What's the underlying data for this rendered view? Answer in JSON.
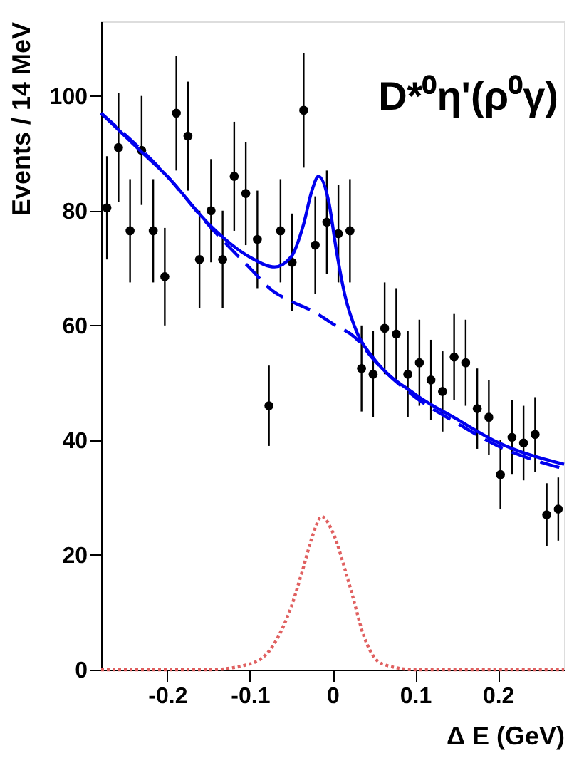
{
  "chart_data": {
    "type": "scatter",
    "xlabel": "Δ E (GeV)",
    "ylabel": "Events / 14 MeV",
    "annotations": [
      "D*⁰η'(ρ⁰γ)"
    ],
    "xlim": [
      -0.28,
      0.28
    ],
    "xticks": [
      -0.2,
      -0.1,
      0,
      0.1,
      0.2
    ],
    "ylim": [
      0,
      113
    ],
    "yticks": [
      0,
      20,
      40,
      60,
      80,
      100
    ],
    "grid": false,
    "marker": "circle",
    "series": [
      {
        "color": "#000000",
        "x": [
          -0.273,
          -0.259,
          -0.245,
          -0.231,
          -0.217,
          -0.203,
          -0.189,
          -0.175,
          -0.161,
          -0.147,
          -0.133,
          -0.119,
          -0.105,
          -0.091,
          -0.077,
          -0.063,
          -0.049,
          -0.035,
          -0.021,
          -0.007,
          0.007,
          0.021,
          0.035,
          0.049,
          0.063,
          0.077,
          0.091,
          0.105,
          0.119,
          0.133,
          0.147,
          0.161,
          0.175,
          0.189,
          0.203,
          0.217,
          0.231,
          0.245,
          0.259,
          0.273
        ],
        "values": [
          80.5,
          91,
          76.5,
          90.5,
          76.5,
          68.5,
          97,
          93,
          71.5,
          80,
          71.5,
          86,
          83,
          75,
          46,
          76.5,
          71,
          97.5,
          74,
          78,
          76,
          76.5,
          52.5,
          51.5,
          59.5,
          58.5,
          51.5,
          53.5,
          50.5,
          48.5,
          54.5,
          53.5,
          45.5,
          44,
          34,
          40.5,
          39.5,
          41,
          27,
          28
        ],
        "errors": [
          9,
          9.5,
          9,
          9.5,
          9,
          8.5,
          10,
          9.5,
          8.5,
          9,
          8.5,
          9.5,
          9,
          8.5,
          7,
          9,
          8.5,
          10,
          8.5,
          9,
          8.5,
          9,
          7.5,
          7.5,
          8,
          8,
          7.5,
          7.5,
          7,
          7,
          7.5,
          7.5,
          7,
          6.5,
          6,
          6.5,
          6.5,
          6.5,
          5.5,
          5.5
        ]
      },
      {
        "type": "line",
        "marker": "none",
        "color": "#0000ee",
        "line_style": "solid",
        "x": [
          -0.28,
          -0.233,
          -0.2,
          -0.15,
          -0.1,
          -0.07,
          -0.05,
          -0.035,
          -0.025,
          -0.017,
          -0.005,
          0.005,
          0.015,
          0.03,
          0.05,
          0.1,
          0.15,
          0.2,
          0.28
        ],
        "values": [
          97,
          90.5,
          86,
          77.7,
          71.9,
          70.2,
          72,
          77.7,
          83.5,
          86,
          81.8,
          72.7,
          65.2,
          58.6,
          54.2,
          48,
          43.7,
          39.6,
          35.8
        ]
      },
      {
        "type": "line",
        "marker": "none",
        "color": "#0000ee",
        "line_style": "dashed",
        "x": [
          -0.28,
          -0.2,
          -0.15,
          -0.1,
          -0.073,
          -0.05,
          -0.023,
          0,
          0.028,
          0.05,
          0.1,
          0.15,
          0.2,
          0.28
        ],
        "values": [
          97,
          86,
          77.5,
          70,
          66.1,
          64.2,
          62.4,
          60.3,
          57.8,
          54,
          47.5,
          43,
          39,
          35
        ]
      },
      {
        "type": "line",
        "marker": "none",
        "color": "#e06060",
        "line_style": "dotted",
        "x": [
          -0.28,
          -0.15,
          -0.1,
          -0.073,
          -0.05,
          -0.035,
          -0.025,
          -0.013,
          0,
          0.02,
          0.04,
          0.06,
          0.1,
          0.28
        ],
        "values": [
          0,
          0,
          1,
          4,
          11,
          18,
          23,
          26.7,
          24,
          15,
          5,
          1,
          0,
          0
        ]
      }
    ]
  }
}
